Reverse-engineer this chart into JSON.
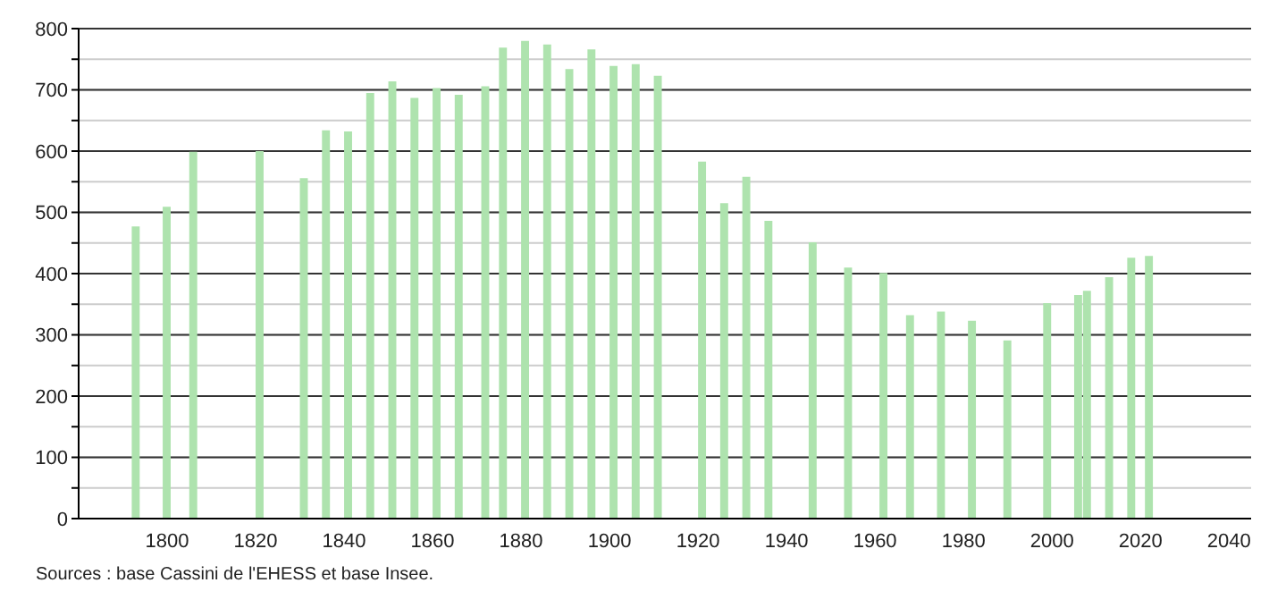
{
  "chart_data": {
    "type": "bar",
    "x": [
      1793,
      1800,
      1806,
      1821,
      1831,
      1836,
      1841,
      1846,
      1851,
      1856,
      1861,
      1866,
      1872,
      1876,
      1881,
      1886,
      1891,
      1896,
      1901,
      1906,
      1911,
      1921,
      1926,
      1931,
      1936,
      1946,
      1954,
      1962,
      1968,
      1975,
      1982,
      1990,
      1999,
      2006,
      2008,
      2013,
      2018,
      2022
    ],
    "values": [
      477,
      509,
      599,
      600,
      556,
      634,
      632,
      695,
      714,
      687,
      703,
      692,
      706,
      769,
      780,
      774,
      734,
      766,
      739,
      742,
      723,
      583,
      515,
      558,
      486,
      451,
      410,
      401,
      332,
      338,
      323,
      291,
      352,
      365,
      372,
      394,
      426,
      429
    ],
    "color": "#aee3ae",
    "xlim": [
      1780,
      2045
    ],
    "xticks": [
      1800,
      1820,
      1840,
      1860,
      1880,
      1900,
      1920,
      1940,
      1960,
      1980,
      2000,
      2020,
      2040
    ],
    "ylim": [
      0,
      800
    ],
    "yticks": [
      0,
      {
        "value": 50,
        "label": null
      },
      100,
      {
        "value": 150,
        "label": null
      },
      200,
      {
        "value": 250,
        "label": null
      },
      300,
      {
        "value": 350,
        "label": null
      },
      400,
      {
        "value": 450,
        "label": null
      },
      500,
      {
        "value": 550,
        "label": null
      },
      600,
      {
        "value": 650,
        "label": null
      },
      700,
      {
        "value": 750,
        "label": null
      },
      800
    ],
    "grid": "y",
    "annotations": [
      "Sources : base Cassini de l'EHESS et base Insee."
    ]
  }
}
